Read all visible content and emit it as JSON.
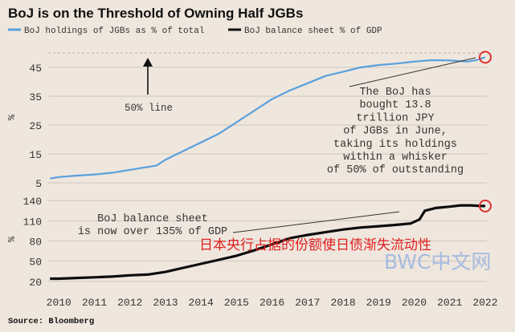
{
  "title": "BoJ is on the Threshold of Owning Half JGBs",
  "source": "Source: Bloomberg",
  "watermark": {
    "chinese": "日本央行占据的份额使日债渐失流动性",
    "brand": "BWC中文网"
  },
  "colors": {
    "background": "#efe7de",
    "title": "#111111",
    "holdings_line": "#5aa0dc",
    "balance_line": "#0d0d0d",
    "marker": "#e03030",
    "grid": "#c9c1b8",
    "text": "#333333",
    "watermark_red": "#e02020",
    "watermark_blue": "#9fb7e0"
  },
  "chart_data": [
    {
      "type": "line",
      "panel": "top",
      "legend": [
        {
          "name": "BoJ holdings of JGBs as % of total",
          "color": "#5aa0dc"
        },
        {
          "name": "BoJ balance sheet % of GDP",
          "color": "#0d0d0d"
        }
      ],
      "ylabel": "%",
      "ylim": [
        5,
        50
      ],
      "yticks": [
        5,
        15,
        25,
        35,
        45
      ],
      "xlim": [
        2009.7,
        2022.25
      ],
      "series": [
        {
          "name": "BoJ holdings of JGBs as % of total",
          "x": [
            2009.75,
            2010,
            2010.5,
            2011,
            2011.5,
            2012,
            2012.5,
            2012.75,
            2013,
            2013.5,
            2014,
            2014.5,
            2015,
            2015.5,
            2016,
            2016.5,
            2017,
            2017.5,
            2018,
            2018.5,
            2019,
            2019.5,
            2020,
            2020.5,
            2021,
            2021.25,
            2021.5,
            2021.75,
            2022
          ],
          "values": [
            6.5,
            7.0,
            7.5,
            7.9,
            8.5,
            9.5,
            10.5,
            11,
            13,
            16,
            19,
            22,
            26,
            30,
            34,
            37,
            39.5,
            42,
            43.5,
            45,
            45.8,
            46.3,
            47,
            47.5,
            47.4,
            47.2,
            47,
            47.5,
            48.5
          ]
        }
      ],
      "annotations": {
        "line50": "50% line",
        "boj_text": [
          "The BoJ has",
          "bought 13.8",
          "trillion JPY",
          "of JGBs in June,",
          "taking its holdings",
          "within a whisker",
          "of 50% of outstanding"
        ]
      }
    },
    {
      "type": "line",
      "panel": "bottom",
      "ylabel": "%",
      "ylim": [
        15,
        145
      ],
      "yticks": [
        20,
        50,
        80,
        110,
        140
      ],
      "xlim": [
        2009.7,
        2022.25
      ],
      "xticks": [
        "2010",
        "2011",
        "2012",
        "2013",
        "2014",
        "2015",
        "2016",
        "2017",
        "2018",
        "2019",
        "2020",
        "2021",
        "2022"
      ],
      "series": [
        {
          "name": "BoJ balance sheet % of GDP",
          "x": [
            2009.75,
            2010,
            2010.5,
            2011,
            2011.5,
            2012,
            2012.5,
            2013,
            2013.5,
            2014,
            2014.5,
            2015,
            2015.5,
            2016,
            2016.5,
            2017,
            2017.5,
            2018,
            2018.5,
            2019,
            2019.5,
            2019.9,
            2020.15,
            2020.3,
            2020.6,
            2021,
            2021.3,
            2021.6,
            2021.9,
            2022
          ],
          "values": [
            24,
            24,
            25,
            26,
            27,
            29,
            30,
            34,
            40,
            46,
            52,
            58,
            66,
            75,
            84,
            89,
            93,
            97,
            100,
            102,
            104,
            106,
            112,
            125,
            129,
            131,
            133,
            133,
            132,
            132
          ]
        }
      ],
      "annotations": {
        "bal_text": [
          "BoJ balance sheet",
          "is now over 135% of GDP"
        ]
      }
    }
  ]
}
